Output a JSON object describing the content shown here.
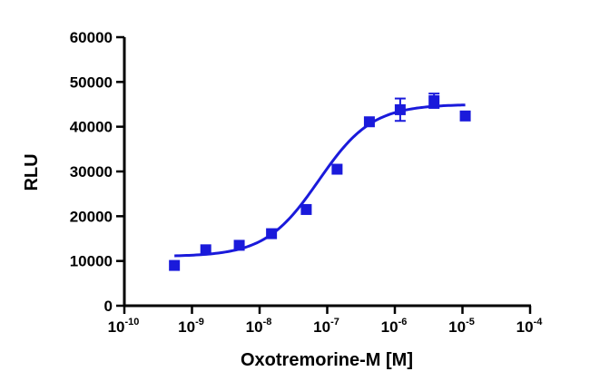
{
  "chart_data": {
    "type": "scatter",
    "xlabel": "Oxotremorine-M [M]",
    "ylabel": "RLU",
    "x_scale": "log",
    "xlim": [
      1e-10,
      0.0001
    ],
    "ylim": [
      0,
      60000
    ],
    "x_ticks": [
      {
        "base": "10",
        "exp": "-10"
      },
      {
        "base": "10",
        "exp": "-9"
      },
      {
        "base": "10",
        "exp": "-8"
      },
      {
        "base": "10",
        "exp": "-7"
      },
      {
        "base": "10",
        "exp": "-6"
      },
      {
        "base": "10",
        "exp": "-5"
      },
      {
        "base": "10",
        "exp": "-4"
      }
    ],
    "y_ticks": [
      "0",
      "10000",
      "20000",
      "30000",
      "40000",
      "50000",
      "60000"
    ],
    "grid": false,
    "color": "#1a1adb",
    "points": [
      {
        "x": 5.5e-10,
        "y": 9000,
        "err": 0
      },
      {
        "x": 1.6e-09,
        "y": 12500,
        "err": 0
      },
      {
        "x": 5e-09,
        "y": 13500,
        "err": 0
      },
      {
        "x": 1.5e-08,
        "y": 16100,
        "err": 0
      },
      {
        "x": 4.9e-08,
        "y": 21500,
        "err": 0
      },
      {
        "x": 1.4e-07,
        "y": 30500,
        "err": 0
      },
      {
        "x": 4.2e-07,
        "y": 41100,
        "err": 0
      },
      {
        "x": 1.2e-06,
        "y": 43800,
        "err": 2500
      },
      {
        "x": 3.8e-06,
        "y": 45800,
        "err": 1600
      },
      {
        "x": 1.1e-05,
        "y": 42400,
        "err": 0
      }
    ],
    "fit": {
      "model": "four-parameter logistic",
      "bottom": 11000,
      "top": 45000,
      "ec50": 7.5e-08,
      "hill_slope": 1.1
    }
  }
}
